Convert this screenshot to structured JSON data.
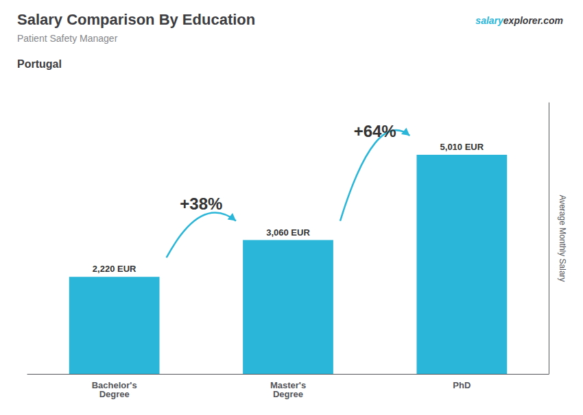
{
  "chart_data": {
    "type": "bar",
    "title": "Salary Comparison By Education",
    "subtitle": "Patient Safety Manager",
    "annotations": [
      "Portugal",
      "salary",
      "explorer.com"
    ],
    "ylabel": "Average Monthly Salary",
    "categories": [
      "Bachelor's\nDegree",
      "Master's\nDegree",
      "PhD"
    ],
    "values": [
      2220,
      3060,
      5010
    ],
    "value_labels": [
      "2,220 EUR",
      "3,060 EUR",
      "5,010 EUR"
    ],
    "data_labels": true,
    "growth_labels": [
      "+38%",
      "+64%"
    ],
    "color": "#29b6d8",
    "ylim": [
      0,
      6200
    ],
    "tick_labels": "x",
    "grid": false
  }
}
